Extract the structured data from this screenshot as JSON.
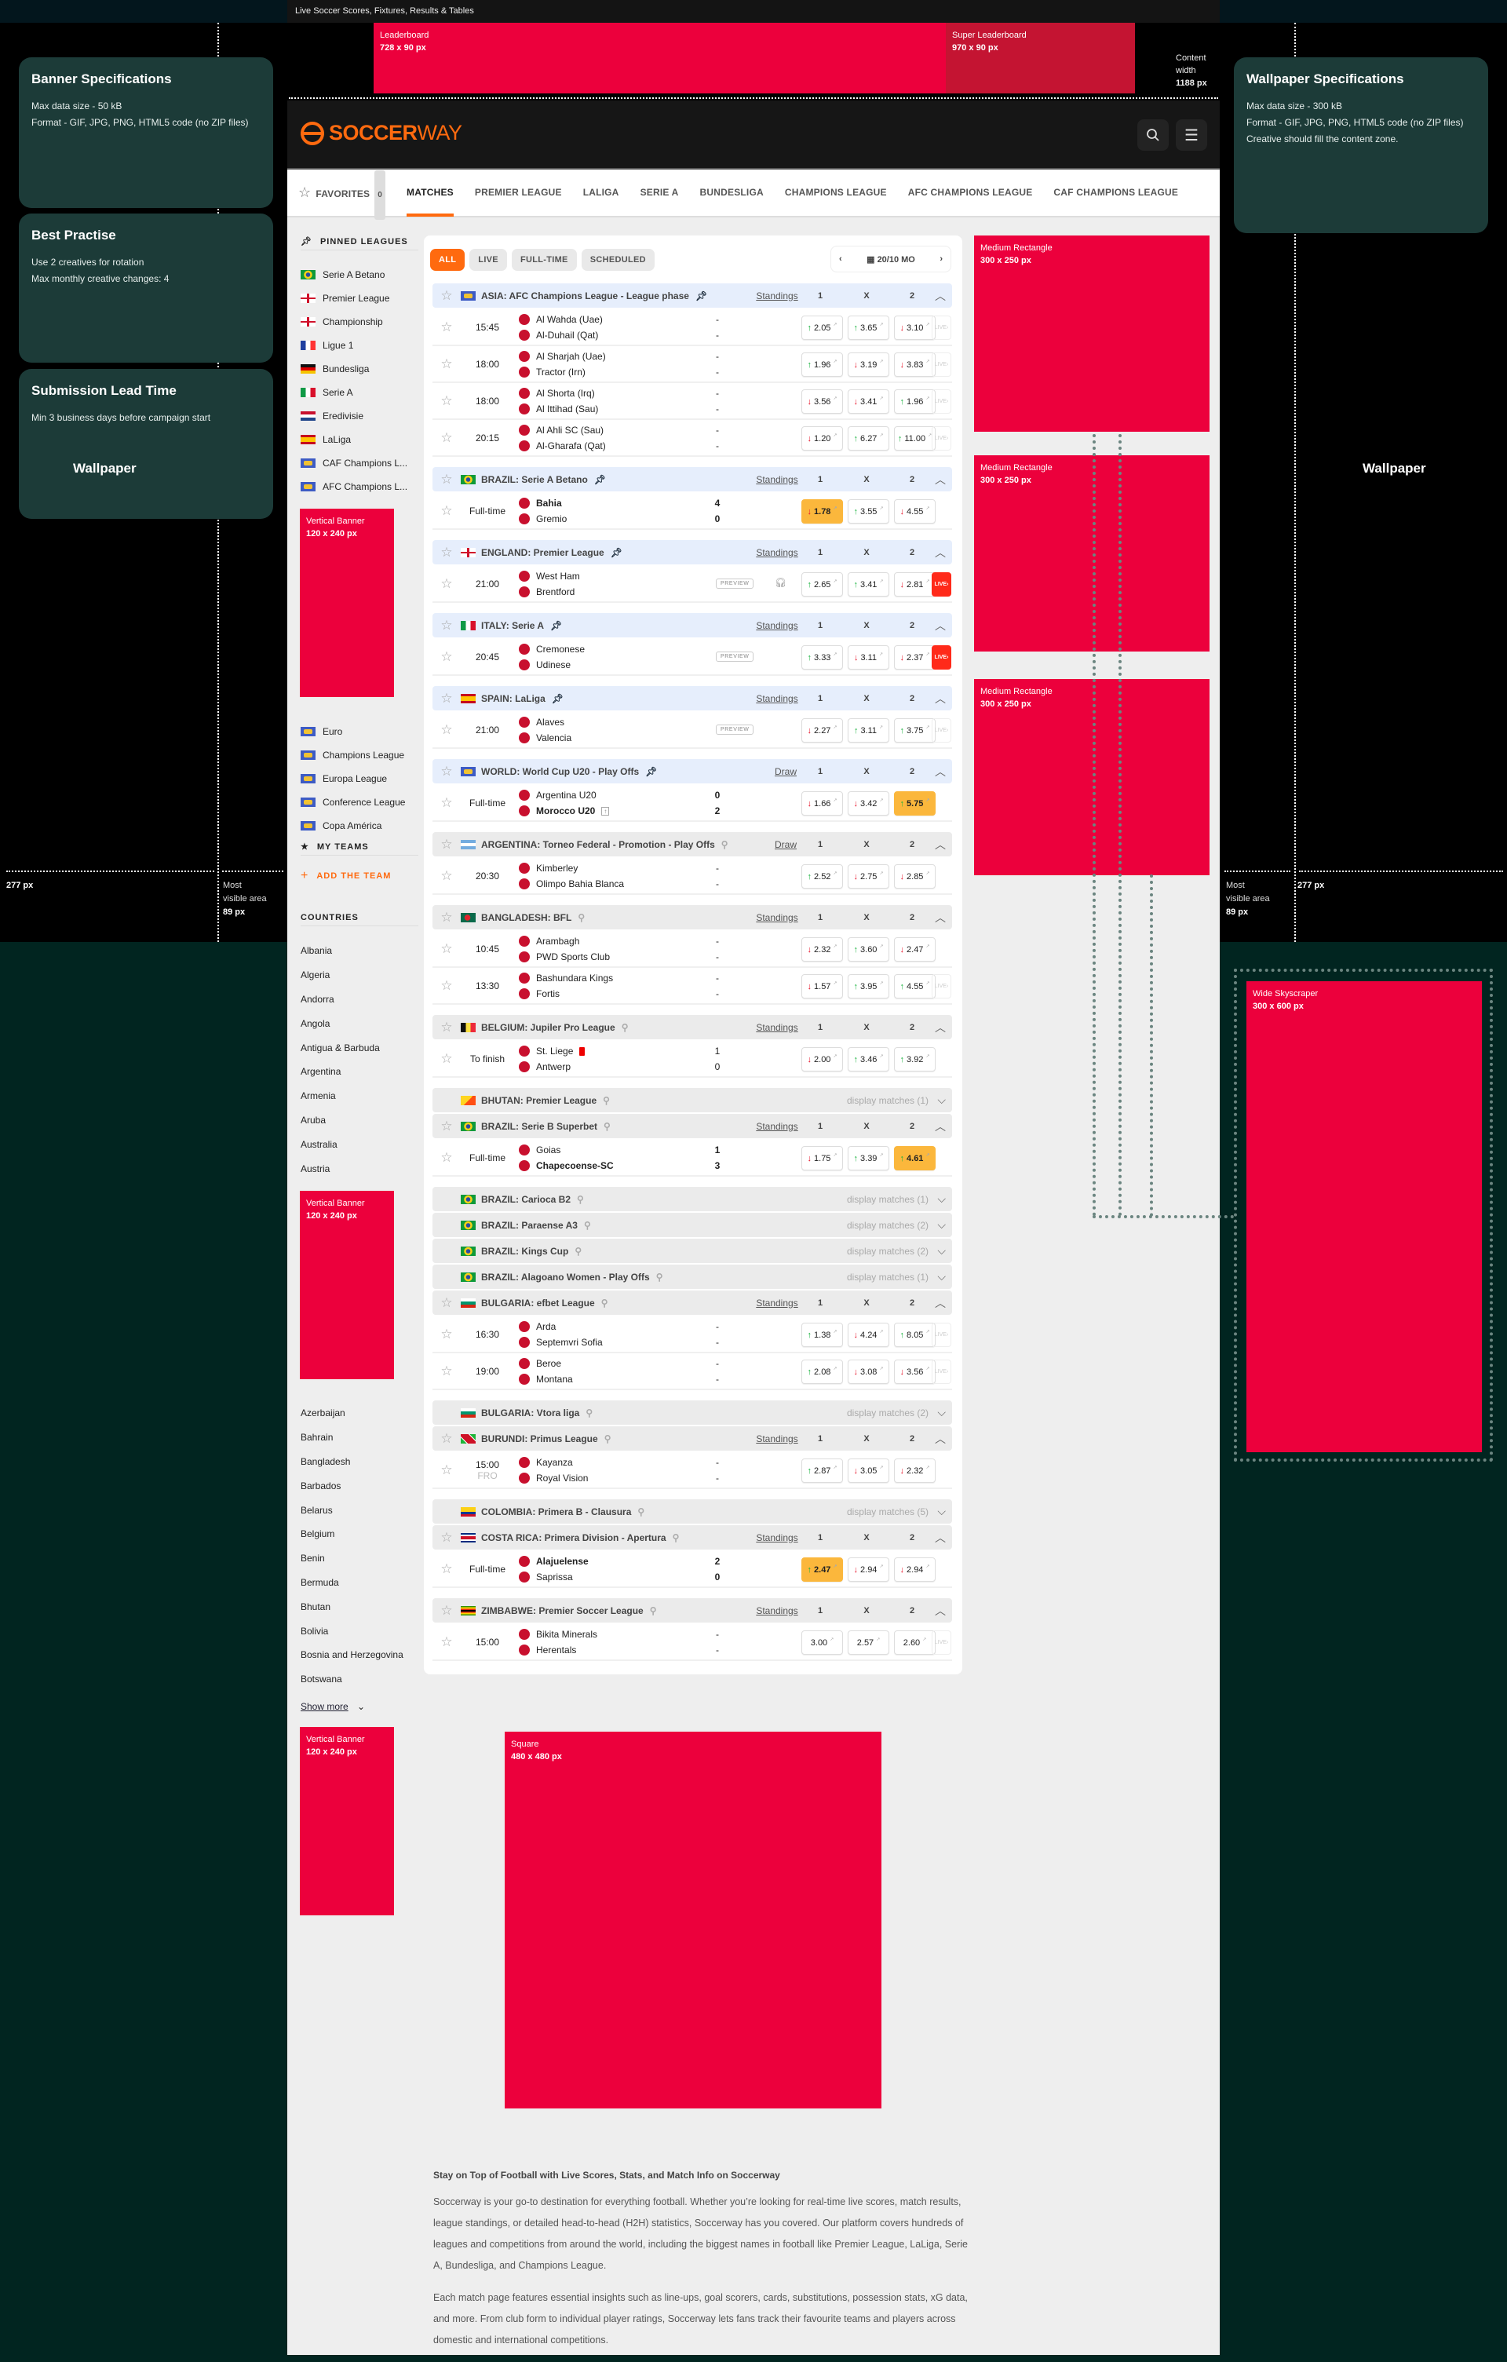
{
  "browser": {
    "title": "Live Soccer Scores, Fixtures, Results & Tables"
  },
  "colors": {
    "ad_red": "#ec003c",
    "super_leaderboard": "#c41432",
    "brand_orange": "#ff6a0f",
    "spec_card": "#1c3b38",
    "odds_highlight": "#fbb73c",
    "live_red": "#ff2a1a"
  },
  "ads": {
    "leaderboard": {
      "label": "Leaderboard",
      "size": "728 x 90 px"
    },
    "super_leaderboard": {
      "label": "Super Leaderboard",
      "size": "970 x 90 px"
    },
    "medium_rect": {
      "label": "Medium Rectangle",
      "size": "300 x 250 px"
    },
    "vertical_banner": {
      "label": "Vertical Banner",
      "size": "120 x 240 px"
    },
    "wide_skyscraper": {
      "label": "Wide Skyscraper",
      "size": "300 x 600 px"
    },
    "square": {
      "label": "Square",
      "size": "480 x 480 px"
    }
  },
  "annotations": {
    "content_width": [
      "Content",
      "width",
      "1188 px"
    ],
    "wallpaper": "Wallpaper",
    "side_width": "277 px",
    "most_visible": [
      "Most",
      "visible area",
      "89 px"
    ]
  },
  "specs": {
    "banner": {
      "title": "Banner Specifications",
      "lines": [
        "Max data size - 50 kB",
        "Format - GIF, JPG, PNG, HTML5 code (no ZIP files)"
      ]
    },
    "best": {
      "title": "Best Practise",
      "lines": [
        "Use 2 creatives for rotation",
        "Max monthly creative changes: 4"
      ]
    },
    "lead": {
      "title": "Submission Lead Time",
      "lines": [
        "Min 3 business days before campaign start"
      ]
    },
    "wallpaper": {
      "title": "Wallpaper Specifications",
      "lines": [
        "Max data size - 300 kB",
        "Format - GIF, JPG, PNG, HTML5 code (no ZIP files)",
        "Creative should fill the content zone."
      ]
    }
  },
  "header": {
    "logo_a": "SOCCER",
    "logo_b": "WAY",
    "search_icon": "search-icon",
    "menu_icon": "menu-icon"
  },
  "nav": {
    "favorites": "FAVORITES",
    "favorites_count": "0",
    "items": [
      "MATCHES",
      "PREMIER LEAGUE",
      "LALIGA",
      "SERIE A",
      "BUNDESLIGA",
      "CHAMPIONS LEAGUE",
      "AFC CHAMPIONS LEAGUE",
      "CAF CHAMPIONS LEAGUE"
    ],
    "active": "MATCHES"
  },
  "sidebar": {
    "pinned_title": "PINNED LEAGUES",
    "pinned": [
      {
        "flag": "br",
        "label": "Serie A Betano"
      },
      {
        "flag": "en",
        "label": "Premier League"
      },
      {
        "flag": "en",
        "label": "Championship"
      },
      {
        "flag": "fr",
        "label": "Ligue 1"
      },
      {
        "flag": "de",
        "label": "Bundesliga"
      },
      {
        "flag": "it",
        "label": "Serie A"
      },
      {
        "flag": "nl",
        "label": "Eredivisie"
      },
      {
        "flag": "es",
        "label": "LaLiga"
      },
      {
        "flag": "world",
        "label": "CAF Champions L..."
      },
      {
        "flag": "world",
        "label": "AFC Champions L..."
      }
    ],
    "pinned_more": [
      {
        "flag": "world",
        "label": "Euro"
      },
      {
        "flag": "world",
        "label": "Champions League"
      },
      {
        "flag": "world",
        "label": "Europa League"
      },
      {
        "flag": "world",
        "label": "Conference League"
      },
      {
        "flag": "world",
        "label": "Copa América"
      }
    ],
    "my_teams": "MY TEAMS",
    "add_team": "ADD THE TEAM",
    "countries_title": "COUNTRIES",
    "countries_a": [
      "Albania",
      "Algeria",
      "Andorra",
      "Angola",
      "Antigua & Barbuda",
      "Argentina",
      "Armenia",
      "Aruba",
      "Australia",
      "Austria"
    ],
    "countries_b": [
      "Azerbaijan",
      "Bahrain",
      "Bangladesh",
      "Barbados",
      "Belarus",
      "Belgium",
      "Benin",
      "Bermuda",
      "Bhutan",
      "Bolivia",
      "Bosnia and Herzegovina",
      "Botswana"
    ],
    "show_more": "Show more"
  },
  "main": {
    "filters": [
      "ALL",
      "LIVE",
      "FULL-TIME",
      "SCHEDULED"
    ],
    "active_filter": "ALL",
    "date": "20/10 MO",
    "odds_headers": [
      "1",
      "X",
      "2"
    ],
    "live_label": "LIVE›",
    "preview_label": "PREVIEW",
    "groups": [
      {
        "flag": "world",
        "name": "ASIA: AFC Champions League - League phase",
        "pinned": true,
        "link": "Standings",
        "rows": [
          {
            "time": "15:45",
            "home": "Al Wahda (Uae)",
            "away": "Al-Duhail (Qat)",
            "hs": "-",
            "as": "-",
            "odds": [
              [
                "up",
                "2.05"
              ],
              [
                "up",
                "3.65"
              ],
              [
                "down",
                "3.10"
              ]
            ],
            "live": "off"
          },
          {
            "time": "18:00",
            "home": "Al Sharjah (Uae)",
            "away": "Tractor (Irn)",
            "hs": "-",
            "as": "-",
            "odds": [
              [
                "up",
                "1.96"
              ],
              [
                "down",
                "3.19"
              ],
              [
                "down",
                "3.83"
              ]
            ],
            "live": "off"
          },
          {
            "time": "18:00",
            "home": "Al Shorta (Irq)",
            "away": "Al Ittihad (Sau)",
            "hs": "-",
            "as": "-",
            "odds": [
              [
                "down",
                "3.56"
              ],
              [
                "down",
                "3.41"
              ],
              [
                "up",
                "1.96"
              ]
            ],
            "live": "off"
          },
          {
            "time": "20:15",
            "home": "Al Ahli SC (Sau)",
            "away": "Al-Gharafa (Qat)",
            "hs": "-",
            "as": "-",
            "odds": [
              [
                "down",
                "1.20"
              ],
              [
                "up",
                "6.27"
              ],
              [
                "up",
                "11.00"
              ]
            ],
            "live": "off"
          }
        ]
      },
      {
        "flag": "br",
        "name": "BRAZIL: Serie A Betano",
        "pinned": true,
        "link": "Standings",
        "rows": [
          {
            "time": "Full-time",
            "home": "Bahia",
            "away": "Gremio",
            "hs": "4",
            "as": "0",
            "winner": "home",
            "odds": [
              [
                "down",
                "1.78"
              ],
              [
                "up",
                "3.55"
              ],
              [
                "down",
                "4.55"
              ]
            ],
            "hl": 0
          }
        ]
      },
      {
        "flag": "en",
        "name": "ENGLAND: Premier League",
        "pinned": true,
        "link": "Standings",
        "rows": [
          {
            "time": "21:00",
            "home": "West Ham",
            "away": "Brentford",
            "preview": true,
            "audio": true,
            "odds": [
              [
                "up",
                "2.65"
              ],
              [
                "up",
                "3.41"
              ],
              [
                "down",
                "2.81"
              ]
            ],
            "live": "on"
          }
        ]
      },
      {
        "flag": "it",
        "name": "ITALY: Serie A",
        "pinned": true,
        "link": "Standings",
        "rows": [
          {
            "time": "20:45",
            "home": "Cremonese",
            "away": "Udinese",
            "preview": true,
            "odds": [
              [
                "up",
                "3.33"
              ],
              [
                "down",
                "3.11"
              ],
              [
                "down",
                "2.37"
              ]
            ],
            "live": "on"
          }
        ]
      },
      {
        "flag": "es",
        "name": "SPAIN: LaLiga",
        "pinned": true,
        "link": "Standings",
        "rows": [
          {
            "time": "21:00",
            "home": "Alaves",
            "away": "Valencia",
            "preview": true,
            "odds": [
              [
                "down",
                "2.27"
              ],
              [
                "up",
                "3.11"
              ],
              [
                "up",
                "3.75"
              ]
            ],
            "live": "off"
          }
        ]
      },
      {
        "flag": "world",
        "name": "WORLD: World Cup U20 - Play Offs",
        "pinned": true,
        "link": "Draw",
        "rows": [
          {
            "time": "Full-time",
            "home": "Argentina U20",
            "away": "Morocco U20",
            "hs": "0",
            "as": "2",
            "winner": "away",
            "advance": true,
            "odds": [
              [
                "down",
                "1.66"
              ],
              [
                "down",
                "3.42"
              ],
              [
                "up",
                "5.75"
              ]
            ],
            "hl": 2
          }
        ]
      },
      {
        "flag": "ar",
        "name": "ARGENTINA: Torneo Federal - Promotion - Play Offs",
        "pinned": false,
        "link": "Draw",
        "rows": [
          {
            "time": "20:30",
            "home": "Kimberley",
            "away": "Olimpo Bahia Blanca",
            "hs": "-",
            "as": "-",
            "odds": [
              [
                "up",
                "2.52"
              ],
              [
                "down",
                "2.75"
              ],
              [
                "down",
                "2.85"
              ]
            ]
          }
        ]
      },
      {
        "flag": "bd",
        "name": "BANGLADESH: BFL",
        "pinned": false,
        "link": "Standings",
        "rows": [
          {
            "time": "10:45",
            "home": "Arambagh",
            "away": "PWD Sports Club",
            "hs": "-",
            "as": "-",
            "odds": [
              [
                "down",
                "2.32"
              ],
              [
                "up",
                "3.60"
              ],
              [
                "down",
                "2.47"
              ]
            ]
          },
          {
            "time": "13:30",
            "home": "Bashundara Kings",
            "away": "Fortis",
            "hs": "-",
            "as": "-",
            "odds": [
              [
                "down",
                "1.57"
              ],
              [
                "up",
                "3.95"
              ],
              [
                "up",
                "4.55"
              ]
            ],
            "live": "off"
          }
        ]
      },
      {
        "flag": "be",
        "name": "BELGIUM: Jupiler Pro League",
        "pinned": false,
        "link": "Standings",
        "rows": [
          {
            "time": "To finish",
            "home": "St. Liege",
            "away": "Antwerp",
            "hs": "1",
            "as": "0",
            "redcard": true,
            "odds": [
              [
                "down",
                "2.00"
              ],
              [
                "up",
                "3.46"
              ],
              [
                "up",
                "3.92"
              ]
            ]
          }
        ]
      },
      {
        "flag": "bt",
        "name": "BHUTAN: Premier League",
        "pinned": false,
        "collapsed": "display matches (1)"
      },
      {
        "flag": "br",
        "name": "BRAZIL: Serie B Superbet",
        "pinned": false,
        "link": "Standings",
        "rows": [
          {
            "time": "Full-time",
            "home": "Goias",
            "away": "Chapecoense-SC",
            "hs": "1",
            "as": "3",
            "winner": "away",
            "odds": [
              [
                "down",
                "1.75"
              ],
              [
                "up",
                "3.39"
              ],
              [
                "up",
                "4.61"
              ]
            ],
            "hl": 2
          }
        ]
      },
      {
        "flag": "br",
        "name": "BRAZIL: Carioca B2",
        "pinned": false,
        "collapsed": "display matches (1)"
      },
      {
        "flag": "br",
        "name": "BRAZIL: Paraense A3",
        "pinned": false,
        "collapsed": "display matches (2)"
      },
      {
        "flag": "br",
        "name": "BRAZIL: Kings Cup",
        "pinned": false,
        "collapsed": "display matches (2)"
      },
      {
        "flag": "br",
        "name": "BRAZIL: Alagoano Women - Play Offs",
        "pinned": false,
        "collapsed": "display matches (1)"
      },
      {
        "flag": "bg",
        "name": "BULGARIA: efbet League",
        "pinned": false,
        "link": "Standings",
        "rows": [
          {
            "time": "16:30",
            "home": "Arda",
            "away": "Septemvri Sofia",
            "hs": "-",
            "as": "-",
            "odds": [
              [
                "up",
                "1.38"
              ],
              [
                "down",
                "4.24"
              ],
              [
                "up",
                "8.05"
              ]
            ],
            "live": "off"
          },
          {
            "time": "19:00",
            "home": "Beroe",
            "away": "Montana",
            "hs": "-",
            "as": "-",
            "odds": [
              [
                "up",
                "2.08"
              ],
              [
                "down",
                "3.08"
              ],
              [
                "down",
                "3.56"
              ]
            ],
            "live": "off"
          }
        ]
      },
      {
        "flag": "bg",
        "name": "BULGARIA: Vtora liga",
        "pinned": false,
        "collapsed": "display matches (2)"
      },
      {
        "flag": "bi",
        "name": "BURUNDI: Primus League",
        "pinned": false,
        "link": "Standings",
        "rows": [
          {
            "time": "15:00",
            "sub": "FRO",
            "home": "Kayanza",
            "away": "Royal Vision",
            "hs": "-",
            "as": "-",
            "odds": [
              [
                "up",
                "2.87"
              ],
              [
                "down",
                "3.05"
              ],
              [
                "down",
                "2.32"
              ]
            ]
          }
        ]
      },
      {
        "flag": "co",
        "name": "COLOMBIA: Primera B - Clausura",
        "pinned": false,
        "collapsed": "display matches (5)"
      },
      {
        "flag": "cr",
        "name": "COSTA RICA: Primera Division - Apertura",
        "pinned": false,
        "link": "Standings",
        "rows": [
          {
            "time": "Full-time",
            "home": "Alajuelense",
            "away": "Saprissa",
            "hs": "2",
            "as": "0",
            "winner": "home",
            "odds": [
              [
                "up",
                "2.47"
              ],
              [
                "down",
                "2.94"
              ],
              [
                "down",
                "2.94"
              ]
            ],
            "hl": 0
          }
        ]
      },
      {
        "flag": "zw",
        "name": "ZIMBABWE: Premier Soccer League",
        "pinned": false,
        "link": "Standings",
        "rows": [
          {
            "time": "15:00",
            "home": "Bikita Minerals",
            "away": "Herentals",
            "hs": "-",
            "as": "-",
            "odds": [
              [
                "none",
                "3.00"
              ],
              [
                "none",
                "2.57"
              ],
              [
                "none",
                "2.60"
              ]
            ],
            "live": "off"
          }
        ]
      }
    ]
  },
  "footer": {
    "heading": "Stay on Top of Football with Live Scores, Stats, and Match Info on Soccerway",
    "p1": "Soccerway is your go-to destination for everything football. Whether you’re looking for real-time live scores, match results, league standings, or detailed head-to-head (H2H) statistics, Soccerway has you covered. Our platform covers hundreds of leagues and competitions from around the world, including the biggest names in football like Premier League, LaLiga, Serie A, Bundesliga, and Champions League.",
    "p2": "Each match page features essential insights such as line-ups, goal scorers, cards, substitutions, possession stats, xG data, and more. From club form to individual player ratings, Soccerway lets fans track their favourite teams and players across domestic and international competitions."
  }
}
